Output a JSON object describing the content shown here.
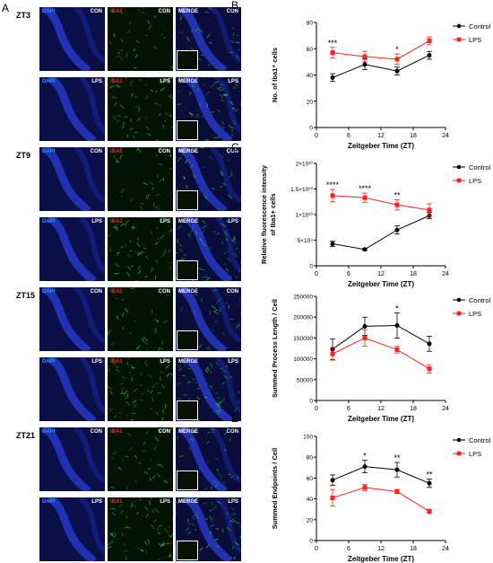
{
  "panel_a": {
    "letter": "A",
    "rows": [
      {
        "zt": "ZT3",
        "cond": "CON"
      },
      {
        "zt": "",
        "cond": "LPS"
      },
      {
        "zt": "ZT9",
        "cond": "CON"
      },
      {
        "zt": "",
        "cond": "LPS"
      },
      {
        "zt": "ZT15",
        "cond": "CON"
      },
      {
        "zt": "",
        "cond": "LPS"
      },
      {
        "zt": "ZT21",
        "cond": "CON"
      },
      {
        "zt": "",
        "cond": "LPS"
      }
    ],
    "channels": [
      "DAPI",
      "IBA1",
      "MERGE"
    ],
    "colors": {
      "dapi_label": "#3a8bff",
      "iba1_label": "#ff2020",
      "merge_label": "#ffffff",
      "dapi_bg": "#0a0f4a",
      "iba1_bg": "#031303",
      "merge_bg": "#0a0d3a"
    }
  },
  "legend": {
    "control": "Control",
    "lps": "LPS"
  },
  "colors": {
    "control": "#000000",
    "lps": "#ff2020"
  },
  "chart_data": [
    {
      "letter": "B",
      "type": "line",
      "ylabel": "No. of Iba1⁺ cells",
      "xlabel": "Zeitgeber Time (ZT)",
      "xlim": [
        0,
        24
      ],
      "ylim": [
        0,
        80
      ],
      "xticks": [
        "0",
        "6",
        "12",
        "18",
        "24"
      ],
      "yticks": [
        "0",
        "20",
        "40",
        "60",
        "80"
      ],
      "x": [
        3,
        9,
        15,
        21
      ],
      "series": [
        {
          "name": "Control",
          "values": [
            38,
            48,
            43,
            55
          ],
          "err": [
            3,
            4,
            3,
            3
          ]
        },
        {
          "name": "LPS",
          "values": [
            57,
            54,
            52,
            66
          ],
          "err": [
            4,
            4,
            4,
            3
          ]
        }
      ],
      "annotations": [
        {
          "x": 3,
          "text": "***"
        },
        {
          "x": 15,
          "text": "*"
        }
      ]
    },
    {
      "letter": "C",
      "type": "line",
      "ylabel": "Relative fluorescence intensity\nof Iba1+ cells",
      "xlabel": "Zeitgeber Time (ZT)",
      "xlim": [
        0,
        24
      ],
      "ylim": [
        0,
        20000000000.0
      ],
      "xticks": [
        "0",
        "6",
        "12",
        "18",
        "24"
      ],
      "yticks": [
        "0",
        "5×10⁹",
        "1×10¹⁰",
        "1.5×10¹⁰",
        "2×10¹⁰"
      ],
      "x": [
        3,
        9,
        15,
        21
      ],
      "series": [
        {
          "name": "Control",
          "values": [
            4300000000.0,
            3200000000.0,
            7000000000.0,
            9800000000.0
          ],
          "err": [
            500000000.0,
            200000000.0,
            800000000.0,
            600000000.0
          ]
        },
        {
          "name": "LPS",
          "values": [
            13700000000.0,
            13300000000.0,
            11900000000.0,
            10900000000.0
          ],
          "err": [
            1200000000.0,
            900000000.0,
            1000000000.0,
            1200000000.0
          ]
        }
      ],
      "annotations": [
        {
          "x": 3,
          "text": "****"
        },
        {
          "x": 9,
          "text": "****"
        },
        {
          "x": 15,
          "text": "**"
        }
      ]
    },
    {
      "letter": "D",
      "type": "line",
      "ylabel": "Summed Process Length / Cell",
      "xlabel": "Zeitgeber Time (ZT)",
      "xlim": [
        0,
        24
      ],
      "ylim": [
        0,
        250000
      ],
      "xticks": [
        "0",
        "6",
        "12",
        "18",
        "24"
      ],
      "yticks": [
        "0",
        "50000",
        "100000",
        "150000",
        "200000",
        "250000"
      ],
      "x": [
        3,
        9,
        15,
        21
      ],
      "series": [
        {
          "name": "Control",
          "values": [
            123000,
            178000,
            180000,
            136000
          ],
          "err": [
            25000,
            22000,
            30000,
            18000
          ]
        },
        {
          "name": "LPS",
          "values": [
            112000,
            150000,
            122000,
            76000
          ],
          "err": [
            15000,
            20000,
            8000,
            10000
          ]
        }
      ],
      "annotations": [
        {
          "x": 15,
          "text": "*"
        }
      ]
    },
    {
      "letter": "E",
      "type": "line",
      "ylabel": "Summed Endpoints / Cell",
      "xlabel": "Zeitgeber Time (ZT)",
      "xlim": [
        0,
        24
      ],
      "ylim": [
        0,
        100
      ],
      "xticks": [
        "0",
        "6",
        "12",
        "18",
        "24"
      ],
      "yticks": [
        "0",
        "20",
        "40",
        "60",
        "80",
        "100"
      ],
      "x": [
        3,
        9,
        15,
        21
      ],
      "series": [
        {
          "name": "Control",
          "values": [
            58,
            71,
            68,
            55
          ],
          "err": [
            5,
            6,
            7,
            4
          ]
        },
        {
          "name": "LPS",
          "values": [
            41,
            51,
            47,
            28
          ],
          "err": [
            8,
            3,
            2,
            2
          ]
        }
      ],
      "annotations": [
        {
          "x": 9,
          "text": "*"
        },
        {
          "x": 15,
          "text": "**"
        },
        {
          "x": 21,
          "text": "**"
        }
      ]
    }
  ]
}
